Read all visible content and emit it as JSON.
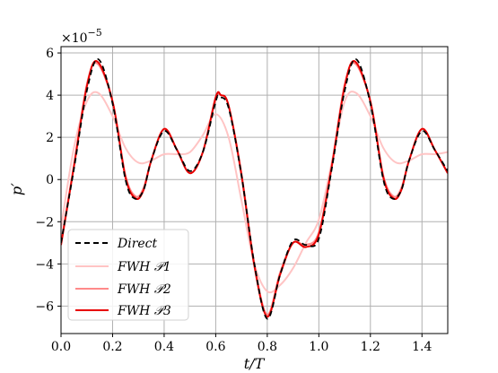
{
  "chart_data": {
    "type": "line",
    "xlabel": "t/T",
    "ylabel": "p′",
    "scale_label": "×10",
    "scale_exponent": "−5",
    "xlim": [
      0.0,
      1.5
    ],
    "ylim": [
      -7.3,
      6.3
    ],
    "xticks": [
      0.0,
      0.2,
      0.4,
      0.6,
      0.8,
      1.0,
      1.2,
      1.4
    ],
    "xtick_labels": [
      "0.0",
      "0.2",
      "0.4",
      "0.6",
      "0.8",
      "1.0",
      "1.2",
      "1.4"
    ],
    "yticks": [
      -6,
      -4,
      -2,
      0,
      2,
      4,
      6
    ],
    "ytick_labels": [
      "−6",
      "−4",
      "−2",
      "0",
      "2",
      "4",
      "6"
    ],
    "grid": true,
    "legend_position": "lower-left",
    "series": [
      {
        "name": "Direct",
        "color": "#000000",
        "dashed": true,
        "x": [
          0.0,
          0.05,
          0.1,
          0.145,
          0.2,
          0.25,
          0.285,
          0.32,
          0.35,
          0.4,
          0.45,
          0.5,
          0.55,
          0.6,
          0.615,
          0.65,
          0.7,
          0.75,
          0.8,
          0.85,
          0.9,
          0.95,
          1.0,
          1.05,
          1.1,
          1.145,
          1.2,
          1.25,
          1.285,
          1.32,
          1.35,
          1.4,
          1.45,
          1.5
        ],
        "values": [
          -3.0,
          0.5,
          4.2,
          5.7,
          3.6,
          0.0,
          -0.9,
          -0.5,
          0.9,
          2.3,
          1.4,
          0.4,
          1.3,
          3.7,
          3.9,
          3.4,
          0.2,
          -4.0,
          -6.6,
          -4.5,
          -2.9,
          -3.1,
          -2.8,
          0.5,
          4.2,
          5.7,
          3.6,
          0.0,
          -0.9,
          -0.5,
          0.9,
          2.3,
          1.4,
          0.4
        ]
      },
      {
        "name": "FWH 𝒫1",
        "color": "#ffc4c4",
        "dashed": false,
        "x": [
          0.0,
          0.05,
          0.1,
          0.145,
          0.2,
          0.25,
          0.3,
          0.35,
          0.4,
          0.45,
          0.5,
          0.55,
          0.6,
          0.65,
          0.7,
          0.75,
          0.8,
          0.85,
          0.9,
          0.95,
          1.0,
          1.05,
          1.1,
          1.145,
          1.2,
          1.25,
          1.3,
          1.35,
          1.4,
          1.45,
          1.5
        ],
        "values": [
          -2.3,
          1.5,
          3.7,
          4.1,
          3.0,
          1.5,
          0.8,
          0.9,
          1.2,
          1.2,
          1.3,
          2.1,
          3.1,
          2.0,
          -1.0,
          -4.0,
          -5.3,
          -5.0,
          -4.2,
          -3.0,
          -1.9,
          0.8,
          3.7,
          4.1,
          3.0,
          1.5,
          0.8,
          0.9,
          1.2,
          1.2,
          1.3
        ]
      },
      {
        "name": "FWH 𝒫2",
        "color": "#ff8a8a",
        "dashed": false,
        "x": [
          0.0,
          0.05,
          0.1,
          0.14,
          0.2,
          0.25,
          0.29,
          0.32,
          0.35,
          0.4,
          0.45,
          0.5,
          0.55,
          0.6,
          0.62,
          0.65,
          0.7,
          0.75,
          0.8,
          0.85,
          0.9,
          0.95,
          1.0,
          1.05,
          1.1,
          1.14,
          1.2,
          1.25,
          1.29,
          1.32,
          1.35,
          1.4,
          1.45,
          1.5
        ],
        "values": [
          -3.0,
          0.7,
          4.5,
          5.5,
          3.7,
          0.2,
          -0.8,
          -0.4,
          0.9,
          2.4,
          1.4,
          0.3,
          1.3,
          3.8,
          4.0,
          3.5,
          0.3,
          -4.0,
          -6.4,
          -4.4,
          -3.0,
          -3.1,
          -2.5,
          0.7,
          4.5,
          5.5,
          3.7,
          0.2,
          -0.8,
          -0.4,
          0.9,
          2.4,
          1.4,
          0.3
        ]
      },
      {
        "name": "FWH 𝒫3",
        "color": "#e80000",
        "dashed": false,
        "x": [
          0.0,
          0.05,
          0.1,
          0.14,
          0.2,
          0.25,
          0.29,
          0.32,
          0.35,
          0.4,
          0.45,
          0.5,
          0.55,
          0.6,
          0.62,
          0.65,
          0.7,
          0.75,
          0.8,
          0.85,
          0.9,
          0.95,
          1.0,
          1.05,
          1.1,
          1.14,
          1.2,
          1.25,
          1.29,
          1.32,
          1.35,
          1.4,
          1.45,
          1.5
        ],
        "values": [
          -3.1,
          0.6,
          4.4,
          5.6,
          3.7,
          0.1,
          -0.9,
          -0.5,
          0.9,
          2.4,
          1.4,
          0.3,
          1.3,
          3.9,
          4.0,
          3.5,
          0.2,
          -4.1,
          -6.5,
          -4.5,
          -3.0,
          -3.2,
          -2.6,
          0.6,
          4.4,
          5.6,
          3.7,
          0.1,
          -0.9,
          -0.5,
          0.9,
          2.4,
          1.4,
          0.3
        ]
      }
    ],
    "legend": [
      {
        "label_main": "Direct",
        "label_sub": ""
      },
      {
        "label_main": "FWH",
        "label_sub": "𝒫1"
      },
      {
        "label_main": "FWH",
        "label_sub": "𝒫2"
      },
      {
        "label_main": "FWH",
        "label_sub": "𝒫3"
      }
    ]
  }
}
